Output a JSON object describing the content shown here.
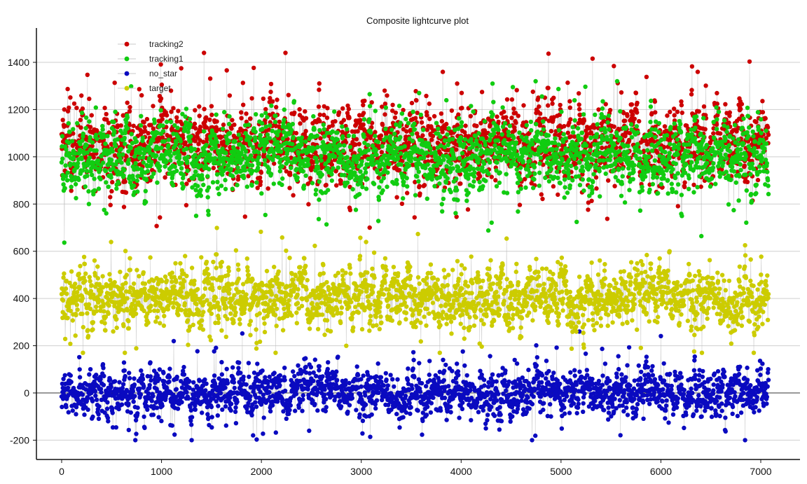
{
  "chart_data": {
    "type": "scatter",
    "title": "Composite lightcurve plot",
    "xlabel": "",
    "ylabel": "",
    "xlim": [
      -250,
      7400
    ],
    "ylim": [
      -290,
      1530
    ],
    "x_ticks": [
      0,
      1000,
      2000,
      3000,
      4000,
      5000,
      6000,
      7000
    ],
    "y_ticks": [
      -200,
      0,
      200,
      400,
      600,
      800,
      1000,
      1200,
      1400
    ],
    "grid": "horizontal",
    "legend": "top-left",
    "connecting_lines": true,
    "n_points": 7080,
    "series": [
      {
        "name": "tracking2",
        "color": "#cc0000",
        "center": 1050,
        "spread": 110,
        "min": 700,
        "max": 1440
      },
      {
        "name": "tracking1",
        "color": "#11cc11",
        "center": 1000,
        "spread": 100,
        "min": 560,
        "max": 1320
      },
      {
        "name": "no_star",
        "color": "#0a0ac0",
        "center": 0,
        "spread": 65,
        "min": -200,
        "max": 260
      },
      {
        "name": "target",
        "color": "#cccc00",
        "center": 400,
        "spread": 85,
        "min": 170,
        "max": 760
      }
    ],
    "draw_order": [
      "no_star",
      "target",
      "tracking2",
      "tracking1"
    ]
  }
}
